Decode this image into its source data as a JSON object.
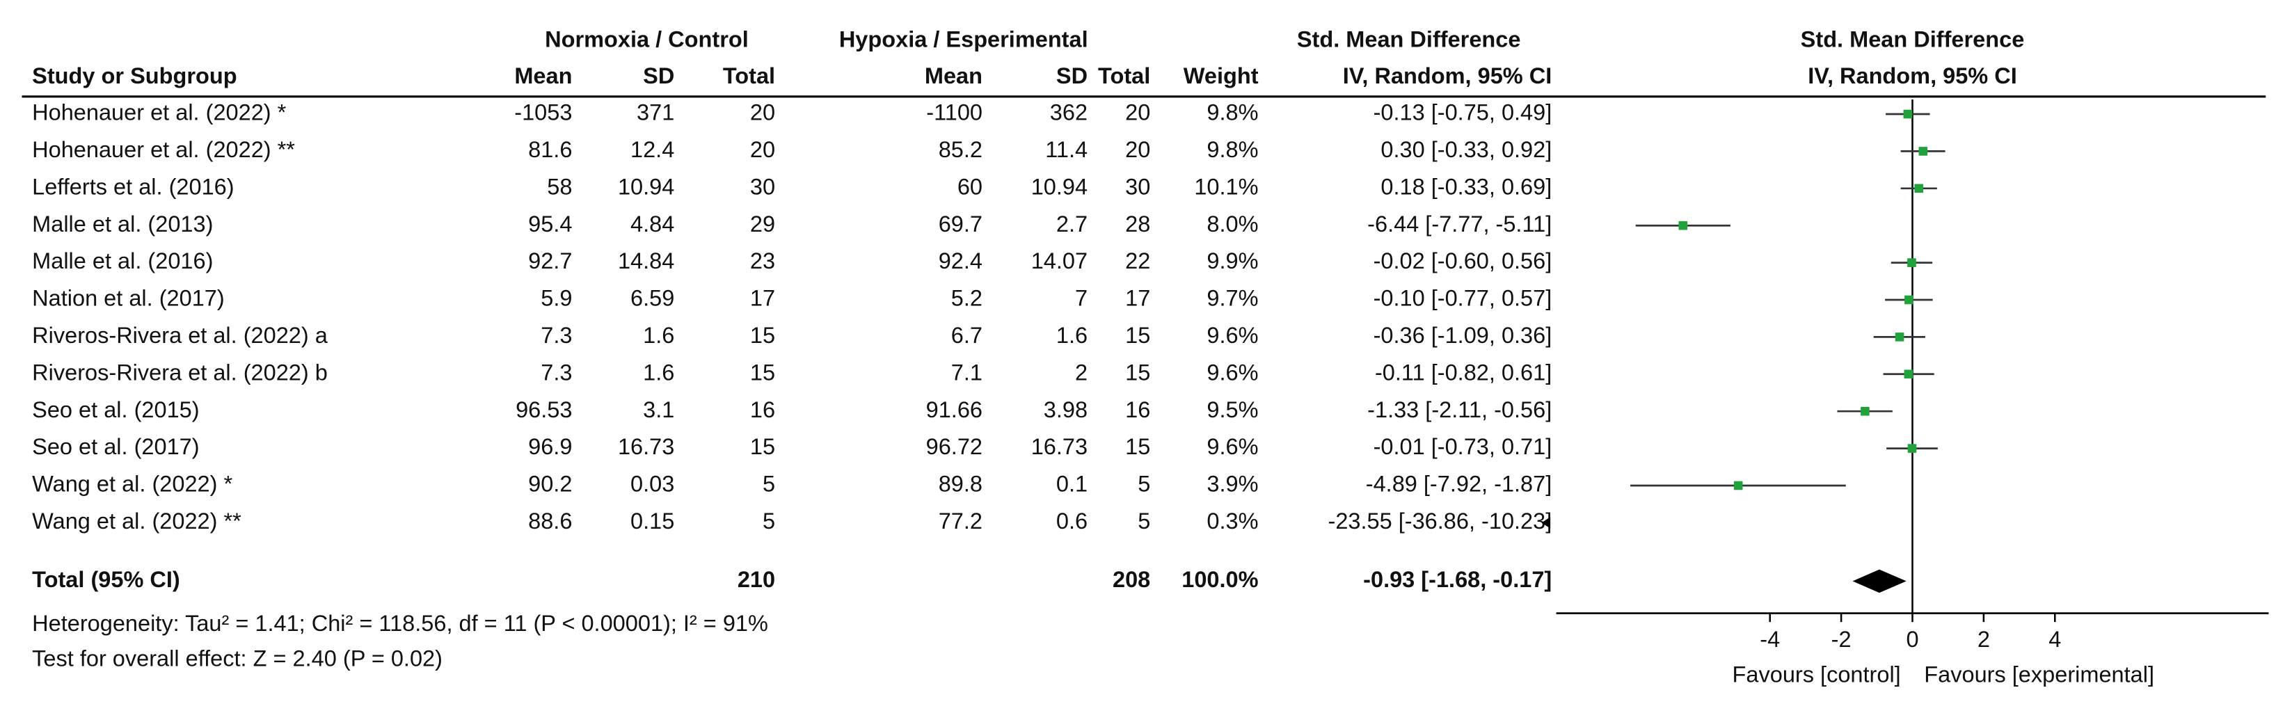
{
  "chart_data": {
    "type": "forest",
    "headers": {
      "control": "Normoxia / Control",
      "experimental": "Hypoxia / Esperimental",
      "effect": "Std. Mean Difference",
      "plot": "Std. Mean Difference"
    },
    "columns": {
      "study": "Study or Subgroup",
      "mean": "Mean",
      "sd": "SD",
      "total": "Total",
      "weight": "Weight",
      "effect": "IV, Random, 95% CI",
      "plot": "IV, Random, 95% CI"
    },
    "categories": [
      "Hohenauer et al. (2022) *",
      "Hohenauer et al. (2022) **",
      "Lefferts et al. (2016)",
      "Malle et al. (2013)",
      "Malle et al. (2016)",
      "Nation et al. (2017)",
      "Riveros-Rivera et al. (2022) a",
      "Riveros-Rivera et al. (2022) b",
      "Seo et al. (2015)",
      "Seo et al. (2017)",
      "Wang et al. (2022) *",
      "Wang et al. (2022) **"
    ],
    "control": {
      "mean": [
        -1053,
        81.6,
        58,
        95.4,
        92.7,
        5.9,
        7.3,
        7.3,
        96.53,
        96.9,
        90.2,
        88.6
      ],
      "sd": [
        371,
        12.4,
        10.94,
        4.84,
        14.84,
        6.59,
        1.6,
        1.6,
        3.1,
        16.73,
        0.03,
        0.15
      ],
      "total": [
        20,
        20,
        30,
        29,
        23,
        17,
        15,
        15,
        16,
        15,
        5,
        5
      ]
    },
    "experimental": {
      "mean": [
        -1100,
        85.2,
        60,
        69.7,
        92.4,
        5.2,
        6.7,
        7.1,
        91.66,
        96.72,
        89.8,
        77.2
      ],
      "sd": [
        362,
        11.4,
        10.94,
        2.7,
        14.07,
        7,
        1.6,
        2,
        3.98,
        16.73,
        0.1,
        0.6
      ],
      "total": [
        20,
        20,
        30,
        28,
        22,
        17,
        15,
        15,
        16,
        15,
        5,
        5
      ]
    },
    "weights": [
      "9.8%",
      "9.8%",
      "10.1%",
      "8.0%",
      "9.9%",
      "9.7%",
      "9.6%",
      "9.6%",
      "9.5%",
      "9.6%",
      "3.9%",
      "0.3%"
    ],
    "values": [
      -0.13,
      0.3,
      0.18,
      -6.44,
      -0.02,
      -0.1,
      -0.36,
      -0.11,
      -1.33,
      -0.01,
      -4.89,
      -23.55
    ],
    "ci_lower": [
      -0.75,
      -0.33,
      -0.33,
      -7.77,
      -0.6,
      -0.77,
      -1.09,
      -0.82,
      -2.11,
      -0.73,
      -7.92,
      -36.86
    ],
    "ci_upper": [
      0.49,
      0.92,
      0.69,
      -5.11,
      0.56,
      0.57,
      0.36,
      0.61,
      -0.56,
      0.71,
      -1.87,
      -10.23
    ],
    "value_labels": [
      "-0.13 [-0.75, 0.49]",
      "0.30 [-0.33, 0.92]",
      "0.18 [-0.33, 0.69]",
      "-6.44 [-7.77, -5.11]",
      "-0.02 [-0.60, 0.56]",
      "-0.10 [-0.77, 0.57]",
      "-0.36 [-1.09, 0.36]",
      "-0.11 [-0.82, 0.61]",
      "-1.33 [-2.11, -0.56]",
      "-0.01 [-0.73, 0.71]",
      "-4.89 [-7.92, -1.87]",
      "-23.55 [-36.86, -10.23]"
    ],
    "total": {
      "label": "Total (95% CI)",
      "control_total": 210,
      "experimental_total": 208,
      "weight": "100.0%",
      "value": -0.93,
      "ci_lower": -1.68,
      "ci_upper": -0.17,
      "value_label": "-0.93 [-1.68, -0.17]"
    },
    "heterogeneity": "Heterogeneity: Tau² = 1.41; Chi² = 118.56, df = 11 (P < 0.00001); I² = 91%",
    "overall_effect": "Test for overall effect: Z = 2.40 (P = 0.02)",
    "xlim": [
      -10,
      10
    ],
    "xticks": [
      -4,
      -2,
      0,
      2,
      4
    ],
    "xlabel_left": "Favours [control]",
    "xlabel_right": "Favours [experimental]",
    "color": "#1fa33a"
  }
}
